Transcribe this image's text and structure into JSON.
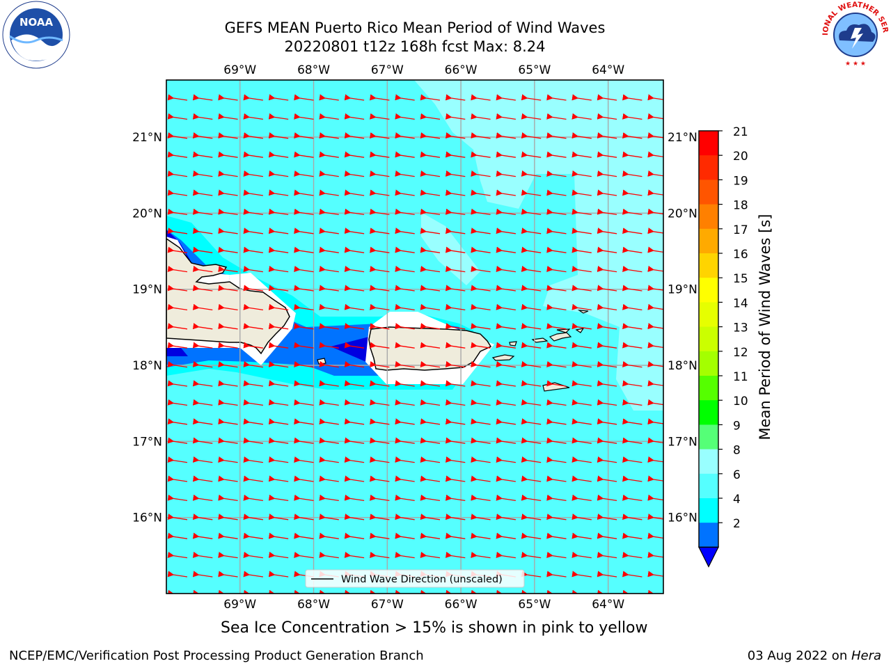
{
  "title": {
    "line1": "GEFS MEAN Puerto Rico Mean Period of Wind Waves",
    "line2": "20220801 t12z 168h fcst   Max: 8.24"
  },
  "map": {
    "lon_labels": [
      "69°W",
      "68°W",
      "67°W",
      "66°W",
      "65°W",
      "64°W"
    ],
    "lat_labels": [
      "21°N",
      "20°N",
      "19°N",
      "18°N",
      "17°N",
      "16°N"
    ],
    "legend_label": "Wind Wave Direction (unscaled)",
    "extent": {
      "lon": [
        -70.0,
        -63.25
      ],
      "lat": [
        15.0,
        21.75
      ]
    },
    "arrow_direction": "toward west-southwest",
    "colors": {
      "ocean_main": "#55ffff",
      "ocean_light": "#99ffff",
      "ocean_bright": "#00ffff",
      "ocean_blue": "#0073ff",
      "ocean_dark": "#0000e0",
      "land": "#efecdc",
      "arrow": "#ff0000"
    }
  },
  "colorbar": {
    "label": "Mean Period of Wind Waves [s]",
    "ticks": [
      "21",
      "20",
      "19",
      "18",
      "17",
      "16",
      "15",
      "14",
      "13",
      "12",
      "11",
      "10",
      "9",
      "8",
      "6",
      "4",
      "2"
    ],
    "colors": [
      "#ff0000",
      "#ff2a00",
      "#ff5500",
      "#ff8000",
      "#ffaa00",
      "#ffd400",
      "#ffff00",
      "#e6ff00",
      "#cbff00",
      "#a4ff00",
      "#55ff00",
      "#00ff00",
      "#55ff77",
      "#99ffff",
      "#55ffff",
      "#00ffff",
      "#0073ff"
    ],
    "under_color": "#0000ff"
  },
  "caption": "Sea Ice Concentration > 15% is shown in pink to yellow",
  "footer": {
    "left": "NCEP/EMC/Verification Post Processing Product Generation Branch",
    "right_prefix": "03 Aug 2022 on ",
    "right_host": "Hera"
  },
  "logos": {
    "left": "noaa-logo",
    "right": "nws-logo",
    "nws_text": "NATIONAL WEATHER SERVICE"
  }
}
